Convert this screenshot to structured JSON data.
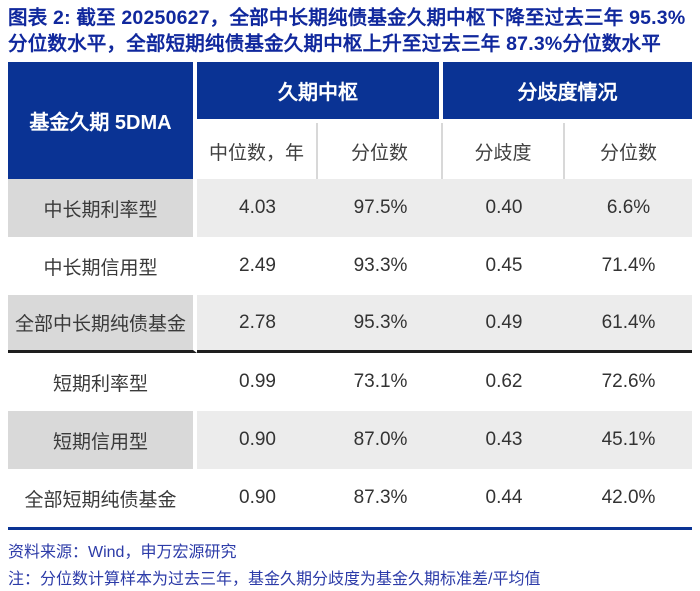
{
  "title": {
    "line1": "图表 2: 截至 20250627，全部中长期纯债基金久期中枢下降至过去三年 95.3%",
    "line2": "分位数水平，全部短期纯债基金久期中枢上升至过去三年 87.3%分位数水平"
  },
  "table": {
    "corner_header": "基金久期 5DMA",
    "group_headers": [
      "久期中枢",
      "分歧度情况"
    ],
    "sub_headers": [
      "中位数，年",
      "分位数",
      "分歧度",
      "分位数"
    ],
    "rows": [
      {
        "label": "中长期利率型",
        "values": [
          "4.03",
          "97.5%",
          "0.40",
          "6.6%"
        ]
      },
      {
        "label": "中长期信用型",
        "values": [
          "2.49",
          "93.3%",
          "0.45",
          "71.4%"
        ]
      },
      {
        "label": "全部中长期纯债基金",
        "values": [
          "2.78",
          "95.3%",
          "0.49",
          "61.4%"
        ]
      },
      {
        "label": "短期利率型",
        "values": [
          "0.99",
          "73.1%",
          "0.62",
          "72.6%"
        ]
      },
      {
        "label": "短期信用型",
        "values": [
          "0.90",
          "87.0%",
          "0.43",
          "45.1%"
        ]
      },
      {
        "label": "全部短期纯债基金",
        "values": [
          "0.90",
          "87.3%",
          "0.44",
          "42.0%"
        ]
      }
    ]
  },
  "footer": {
    "source": "资料来源：Wind，申万宏源研究",
    "note": "注：分位数计算样本为过去三年，基金久期分歧度为基金久期标准差/平均值"
  },
  "colors": {
    "header_navy": "#0a3394",
    "title_blue": "#10289d",
    "note_blue": "#2c3ba8",
    "row_label_gray": "#d9d9d9",
    "row_data_gray": "#ececec",
    "group_separator_dark": "#1e1e1e",
    "bottom_border_navy": "#0a3394"
  }
}
